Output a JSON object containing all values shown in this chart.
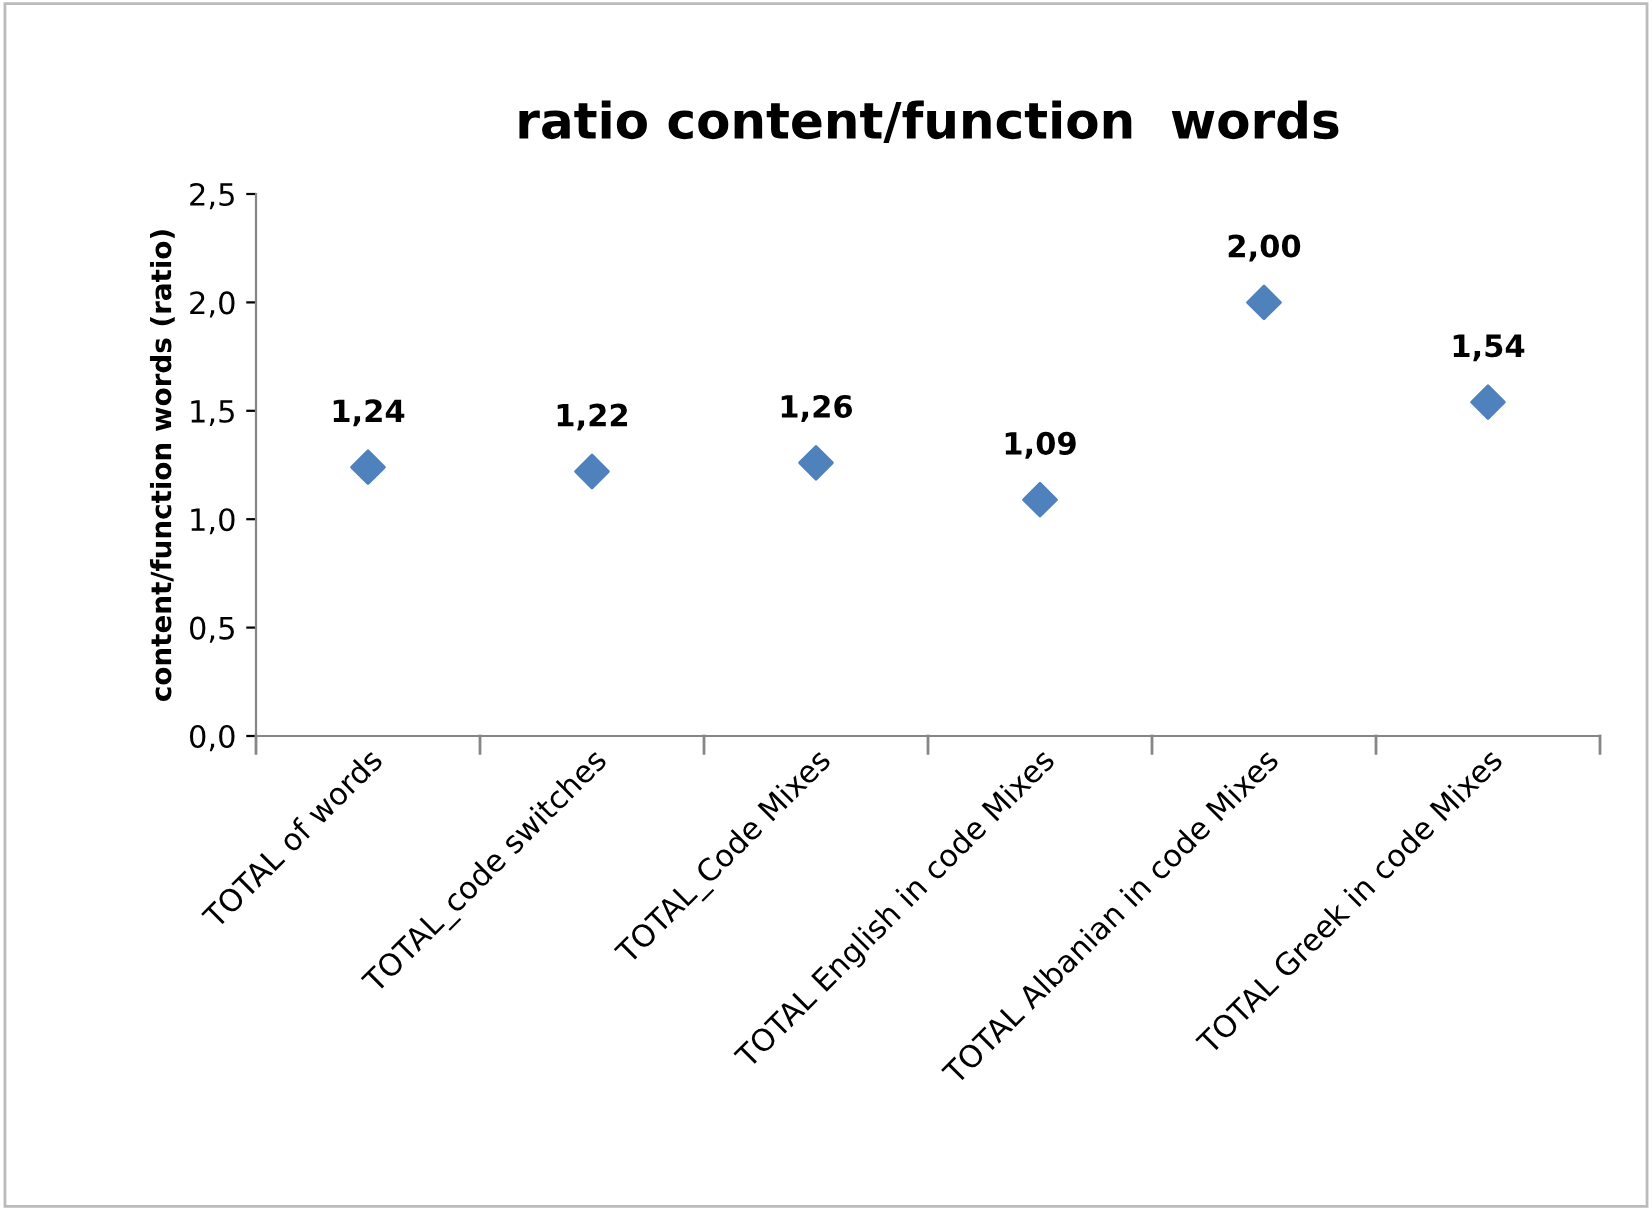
{
  "chart_data": {
    "type": "scatter",
    "title": "ratio content/function  words",
    "ylabel": "content/function words (ratio)",
    "categories": [
      "TOTAL of words",
      "TOTAL_code switches",
      "TOTAL_Code Mixes",
      "TOTAL English in code Mixes",
      "TOTAL Albanian in code Mixes",
      "TOTAL Greek in code Mixes"
    ],
    "values": [
      1.24,
      1.22,
      1.26,
      1.09,
      2.0,
      1.54
    ],
    "value_labels": [
      "1,24",
      "1,22",
      "1,26",
      "1,09",
      "2,00",
      "1,54"
    ],
    "color": "#4f81bd",
    "marker": "diamond",
    "ylim": [
      0,
      2.5
    ],
    "yticks": [
      {
        "value": 0,
        "label": "0,0"
      },
      {
        "value": 0.5,
        "label": "0,5"
      },
      {
        "value": 1,
        "label": "1,0"
      },
      {
        "value": 1.5,
        "label": "1,5"
      },
      {
        "value": 2,
        "label": "2,0"
      },
      {
        "value": 2.5,
        "label": "2,5"
      }
    ],
    "grid": false,
    "legend": false
  }
}
